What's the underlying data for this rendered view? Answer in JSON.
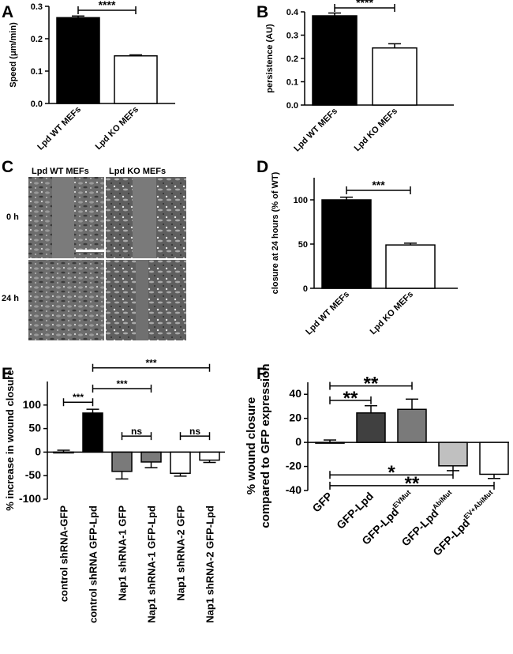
{
  "panels": {
    "A": "A",
    "B": "B",
    "C": "C",
    "D": "D",
    "E": "E",
    "F": "F"
  },
  "micrograph": {
    "col1": "Lpd WT MEFs",
    "col2": "Lpd KO MEFs",
    "row1": "0 h",
    "row2": "24 h"
  },
  "colors": {
    "black": "#000000",
    "white": "#ffffff",
    "darkgray": "#404040",
    "gray": "#7a7a7a",
    "lightgray": "#c0c0c0"
  },
  "chart_data": [
    {
      "id": "A",
      "type": "bar",
      "ylabel": "Speed (μm/min)",
      "categories": [
        "Lpd WT MEFs",
        "Lpd KO MEFs"
      ],
      "values": [
        0.265,
        0.147
      ],
      "errors": [
        0.005,
        0.003
      ],
      "fills": [
        "#000000",
        "#ffffff"
      ],
      "ylim": [
        0,
        0.3
      ],
      "yticks": [
        0.0,
        0.1,
        0.2,
        0.3
      ],
      "ytick_labels": [
        "0.0",
        "0.1",
        "0.2",
        "0.3"
      ],
      "significance": [
        {
          "from": 0,
          "to": 1,
          "label": "****"
        }
      ]
    },
    {
      "id": "B",
      "type": "bar",
      "ylabel": "persistence (AU)",
      "categories": [
        "Lpd WT MEFs",
        "Lpd KO MEFs"
      ],
      "values": [
        0.383,
        0.245
      ],
      "errors": [
        0.012,
        0.018
      ],
      "fills": [
        "#000000",
        "#ffffff"
      ],
      "ylim": [
        0,
        0.4
      ],
      "yticks": [
        0.0,
        0.1,
        0.2,
        0.3,
        0.4
      ],
      "ytick_labels": [
        "0.0",
        "0.1",
        "0.2",
        "0.3",
        "0.4"
      ],
      "significance": [
        {
          "from": 0,
          "to": 1,
          "label": "****"
        }
      ]
    },
    {
      "id": "D",
      "type": "bar",
      "ylabel": "closure at 24 hours (% of WT)",
      "categories": [
        "Lpd WT MEFs",
        "Lpd KO MEFs"
      ],
      "values": [
        100,
        49
      ],
      "errors": [
        3,
        2
      ],
      "fills": [
        "#000000",
        "#ffffff"
      ],
      "ylim": [
        0,
        125
      ],
      "yticks": [
        0,
        50,
        100
      ],
      "ytick_labels": [
        "0",
        "50",
        "100"
      ],
      "significance": [
        {
          "from": 0,
          "to": 1,
          "label": "***"
        }
      ]
    },
    {
      "id": "E",
      "type": "bar",
      "ylabel": "% increase in wound closure",
      "categories": [
        "control shRNA-GFP",
        "control shRNA GFP-Lpd",
        "Nap1 shRNA-1 GFP",
        "Nap1 shRNA-1 GFP-Lpd",
        "Nap1 shRNA-2 GFP",
        "Nap1 shRNA-2 GFP-Lpd"
      ],
      "values": [
        0,
        83,
        -41,
        -21,
        -45,
        -17
      ],
      "errors": [
        4,
        8,
        16,
        12,
        6,
        5
      ],
      "fills": [
        "#ffffff",
        "#000000",
        "#7a7a7a",
        "#7a7a7a",
        "#ffffff",
        "#ffffff"
      ],
      "ylim": [
        -100,
        150
      ],
      "yticks": [
        -100,
        -50,
        0,
        50,
        100
      ],
      "ytick_labels": [
        "-100",
        "-50",
        "0",
        "50",
        "100"
      ],
      "significance": [
        {
          "from": 0,
          "to": 1,
          "label": "***",
          "level": 106
        },
        {
          "from": 1,
          "to": 3,
          "label": "***",
          "level": 135
        },
        {
          "from": 1,
          "to": 5,
          "label": "***",
          "level": 179
        },
        {
          "from": 2,
          "to": 3,
          "label": "ns",
          "level": 34
        },
        {
          "from": 4,
          "to": 5,
          "label": "ns",
          "level": 34
        }
      ]
    },
    {
      "id": "F",
      "type": "bar",
      "ylabel_line1": "% wound closure",
      "ylabel_line2": "compared to GFP expression",
      "categories": [
        {
          "base": "GFP",
          "sup": ""
        },
        {
          "base": "GFP-Lpd",
          "sup": ""
        },
        {
          "base": "GFP-Lpd",
          "sup": "EVMut"
        },
        {
          "base": "GFP-Lpd",
          "sup": "AbiMut"
        },
        {
          "base": "GFP-Lpd",
          "sup": "EV+AbiMut"
        }
      ],
      "values": [
        0,
        24.5,
        27.5,
        -19.5,
        -26.5
      ],
      "errors": [
        2,
        6,
        8.5,
        4,
        3.5
      ],
      "fills": [
        "#ffffff",
        "#404040",
        "#7a7a7a",
        "#c0c0c0",
        "#ffffff"
      ],
      "ylim": [
        -40,
        50
      ],
      "yticks": [
        -40,
        -20,
        0,
        20,
        40
      ],
      "ytick_labels": [
        "-40",
        "-20",
        "0",
        "20",
        "40"
      ],
      "significance": [
        {
          "from": 0,
          "to": 1,
          "label": "**",
          "level": 35
        },
        {
          "from": 0,
          "to": 2,
          "label": "**",
          "level": 47
        },
        {
          "from": 0,
          "to": 3,
          "label": "*",
          "level": -27
        },
        {
          "from": 0,
          "to": 4,
          "label": "**",
          "level": -36
        }
      ]
    }
  ]
}
